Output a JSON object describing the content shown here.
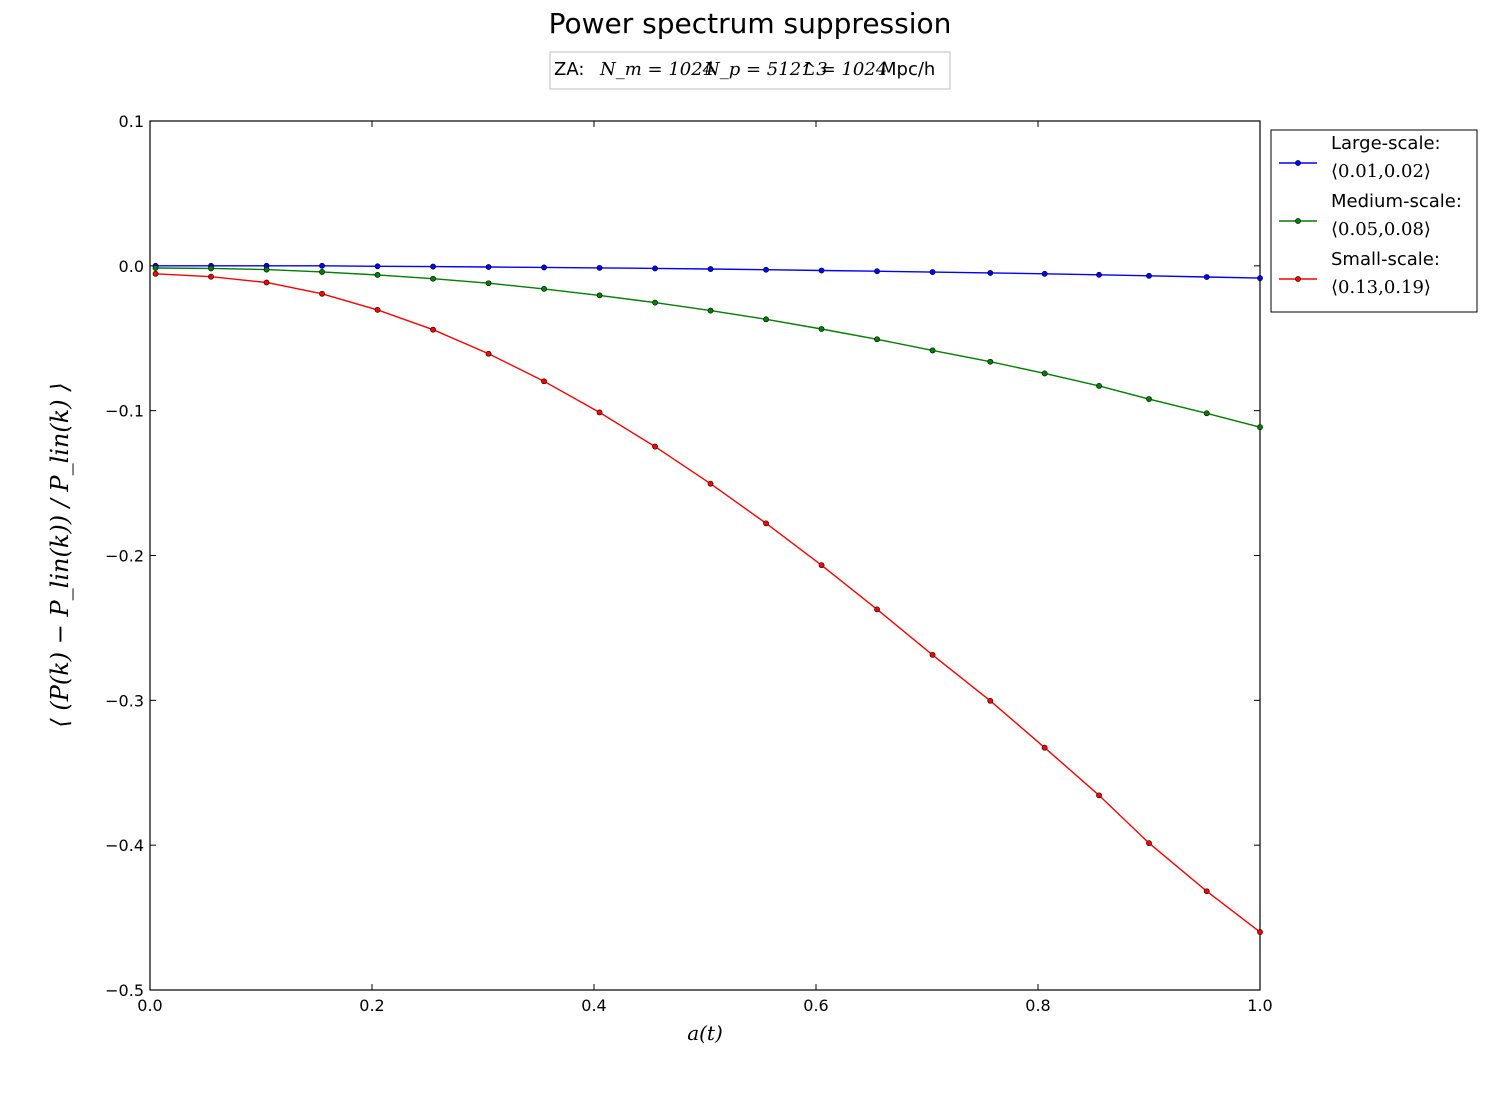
{
  "chart_data": {
    "type": "line",
    "title": "Power spectrum suppression",
    "subtitle": {
      "prefix": "ZA:",
      "nm": "N_m = 1024",
      "np": "N_p = 512^3",
      "box": "L = 1024",
      "unit": "Mpc/h"
    },
    "xlabel": "a(t)",
    "ylabel": "⟨ (P(k) − P_lin(k)) / P_lin(k) ⟩",
    "xlim": [
      0.0,
      1.0
    ],
    "ylim": [
      -0.5,
      0.1
    ],
    "xticks": [
      0.0,
      0.2,
      0.4,
      0.6,
      0.8,
      1.0
    ],
    "xtick_labels": [
      "0.0",
      "0.2",
      "0.4",
      "0.6",
      "0.8",
      "1.0"
    ],
    "yticks": [
      0.1,
      0.0,
      -0.1,
      -0.2,
      -0.3,
      -0.4,
      -0.5
    ],
    "ytick_labels": [
      "0.1",
      "0.0",
      "−0.1",
      "−0.2",
      "−0.3",
      "−0.4",
      "−0.5"
    ],
    "grid": false,
    "legend_position": "outside-right-top",
    "x": [
      0.005,
      0.055,
      0.105,
      0.155,
      0.205,
      0.255,
      0.305,
      0.355,
      0.405,
      0.455,
      0.505,
      0.555,
      0.605,
      0.655,
      0.705,
      0.757,
      0.806,
      0.855,
      0.9,
      0.952,
      1.0
    ],
    "series": [
      {
        "name": "Large-scale:",
        "range": "⟨0.01,0.02⟩",
        "color": "#0000ff",
        "values": [
          0.0,
          0.0,
          0.0,
          0.0,
          -0.0003,
          -0.0005,
          -0.0008,
          -0.0011,
          -0.0014,
          -0.0018,
          -0.0022,
          -0.0027,
          -0.0032,
          -0.0037,
          -0.0043,
          -0.0049,
          -0.0055,
          -0.0062,
          -0.0069,
          -0.0077,
          -0.0085
        ]
      },
      {
        "name": "Medium-scale:",
        "range": "⟨0.05,0.08⟩",
        "color": "#007f00",
        "values": [
          -0.0015,
          -0.0018,
          -0.0026,
          -0.0042,
          -0.0063,
          -0.0089,
          -0.012,
          -0.0159,
          -0.0204,
          -0.0254,
          -0.0309,
          -0.0369,
          -0.0436,
          -0.0507,
          -0.0584,
          -0.0662,
          -0.0743,
          -0.0829,
          -0.092,
          -0.1018,
          -0.1114
        ]
      },
      {
        "name": "Small-scale:",
        "range": "⟨0.13,0.19⟩",
        "color": "#ff0000",
        "values": [
          -0.0055,
          -0.0075,
          -0.0115,
          -0.0193,
          -0.0304,
          -0.0441,
          -0.0607,
          -0.0797,
          -0.1012,
          -0.1248,
          -0.1504,
          -0.1778,
          -0.2067,
          -0.2372,
          -0.2686,
          -0.3003,
          -0.3327,
          -0.3656,
          -0.3986,
          -0.4318,
          -0.46
        ]
      }
    ]
  }
}
